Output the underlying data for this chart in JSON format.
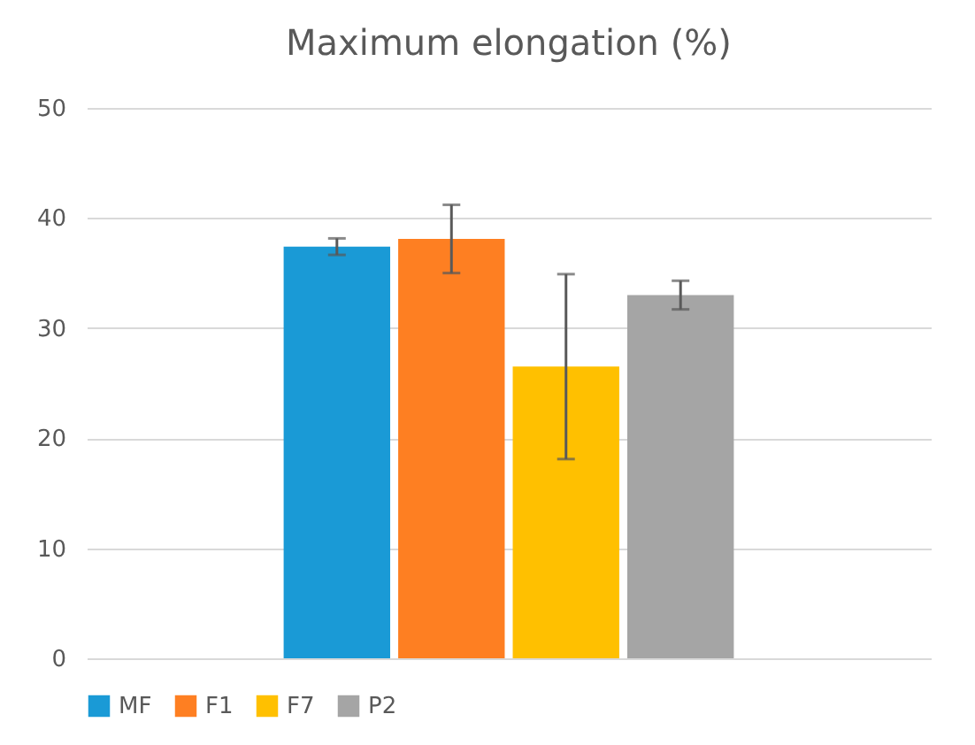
{
  "chart_data": {
    "type": "bar",
    "title": "Maximum elongation (%)",
    "categories": [
      null
    ],
    "series": [
      {
        "name": "MF",
        "color": "#1a9ad6",
        "values": [
          37.4
        ],
        "errors": [
          0.75
        ]
      },
      {
        "name": "F1",
        "color": "#fe7f22",
        "values": [
          38.1
        ],
        "errors": [
          3.1
        ]
      },
      {
        "name": "F7",
        "color": "#ffc000",
        "values": [
          26.5
        ],
        "errors": [
          8.4
        ]
      },
      {
        "name": "P2",
        "color": "#a5a5a5",
        "values": [
          33.0
        ],
        "errors": [
          1.3
        ]
      }
    ],
    "ylim": [
      0,
      50
    ],
    "yticks": [
      0,
      10,
      20,
      30,
      40,
      50
    ],
    "grid": "y",
    "legend": "bottom"
  }
}
